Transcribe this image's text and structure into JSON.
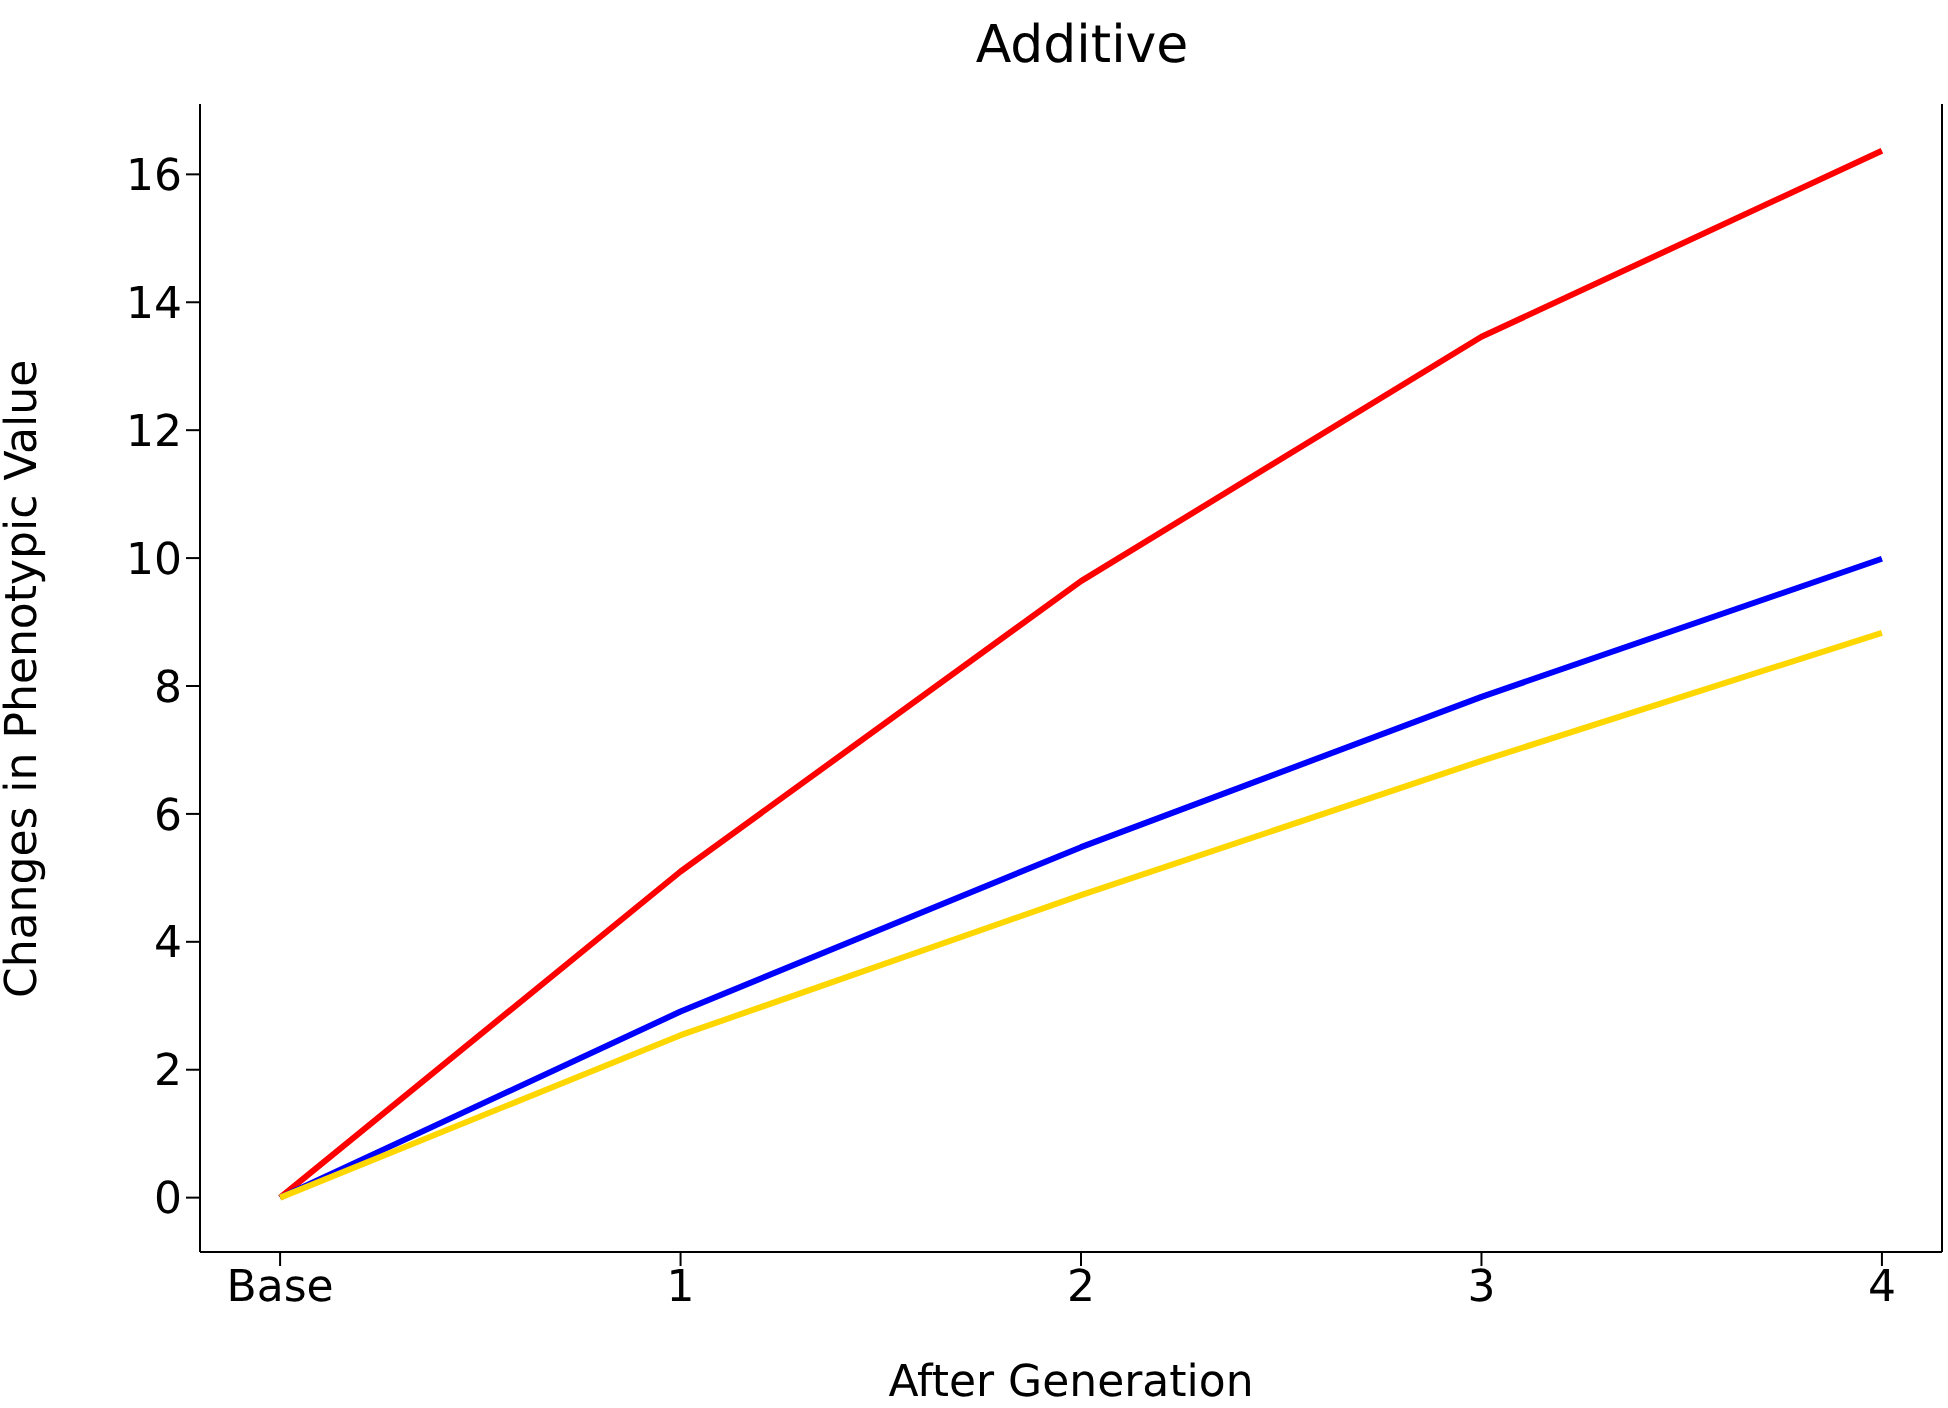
{
  "chart_data": {
    "type": "line",
    "title": "Additive",
    "xlabel": "After Generation",
    "ylabel": "Changes in Phenotypic Value",
    "categories": [
      "Base",
      "1",
      "2",
      "3",
      "4"
    ],
    "series": [
      {
        "color": "#ff0000",
        "values": [
          0,
          5.1,
          9.64,
          13.46,
          16.37
        ]
      },
      {
        "color": "#0000ff",
        "values": [
          0,
          2.91,
          5.48,
          7.83,
          9.99
        ]
      },
      {
        "color": "#ffd700",
        "values": [
          0,
          2.54,
          4.73,
          6.83,
          8.83
        ]
      }
    ],
    "ylim": [
      -0.85,
      17.1
    ],
    "yticks": [
      0,
      2,
      4,
      6,
      8,
      10,
      12,
      14,
      16
    ],
    "grid": false,
    "legend": false,
    "marker": "none",
    "line_style": "solid"
  }
}
